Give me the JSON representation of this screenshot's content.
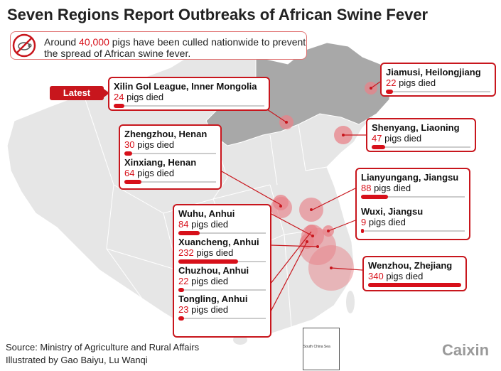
{
  "title": "Seven Regions Report Outbreaks of African Swine Fever",
  "subtitle": {
    "prefix": "Around ",
    "highlight": "40,000",
    "suffix": " pigs have been culled nationwide to prevent the spread of African swine fever."
  },
  "latest_label": "Latest",
  "max_deaths": 340,
  "outbreaks": [
    {
      "city": "Xilin Gol League, Inner Mongolia",
      "deaths": 24,
      "unit": " pigs died",
      "latest": true
    },
    {
      "city": "Jiamusi, Heilongjiang",
      "deaths": 22,
      "unit": " pigs died"
    },
    {
      "city": "Shenyang, Liaoning",
      "deaths": 47,
      "unit": " pigs died"
    },
    {
      "city": "Zhengzhou, Henan",
      "deaths": 30,
      "unit": " pigs died"
    },
    {
      "city": "Xinxiang, Henan",
      "deaths": 64,
      "unit": " pigs died"
    },
    {
      "city": "Lianyungang, Jiangsu",
      "deaths": 88,
      "unit": " pigs died"
    },
    {
      "city": "Wuxi, Jiangsu",
      "deaths": 9,
      "unit": " pigs died"
    },
    {
      "city": "Wuhu, Anhui",
      "deaths": 84,
      "unit": " pigs died"
    },
    {
      "city": "Xuancheng, Anhui",
      "deaths": 232,
      "unit": " pigs died"
    },
    {
      "city": "Chuzhou, Anhui",
      "deaths": 22,
      "unit": " pigs died"
    },
    {
      "city": "Tongling, Anhui",
      "deaths": 23,
      "unit": " pigs died"
    },
    {
      "city": "Wenzhou, Zhejiang",
      "deaths": 340,
      "unit": " pigs died"
    }
  ],
  "inset_label": "South China Sea",
  "source_line": "Source: Ministry of Agriculture and Rural Affairs",
  "credit_line": "Illustrated by Gao Baiyu, Lu Wanqi",
  "logo": "Caixin",
  "colors": {
    "accent": "#d7101a",
    "border": "#c8161d",
    "map_fill": "#e6e6e6",
    "map_dark": "#a8a8a8",
    "bubble": "#e8838a"
  }
}
